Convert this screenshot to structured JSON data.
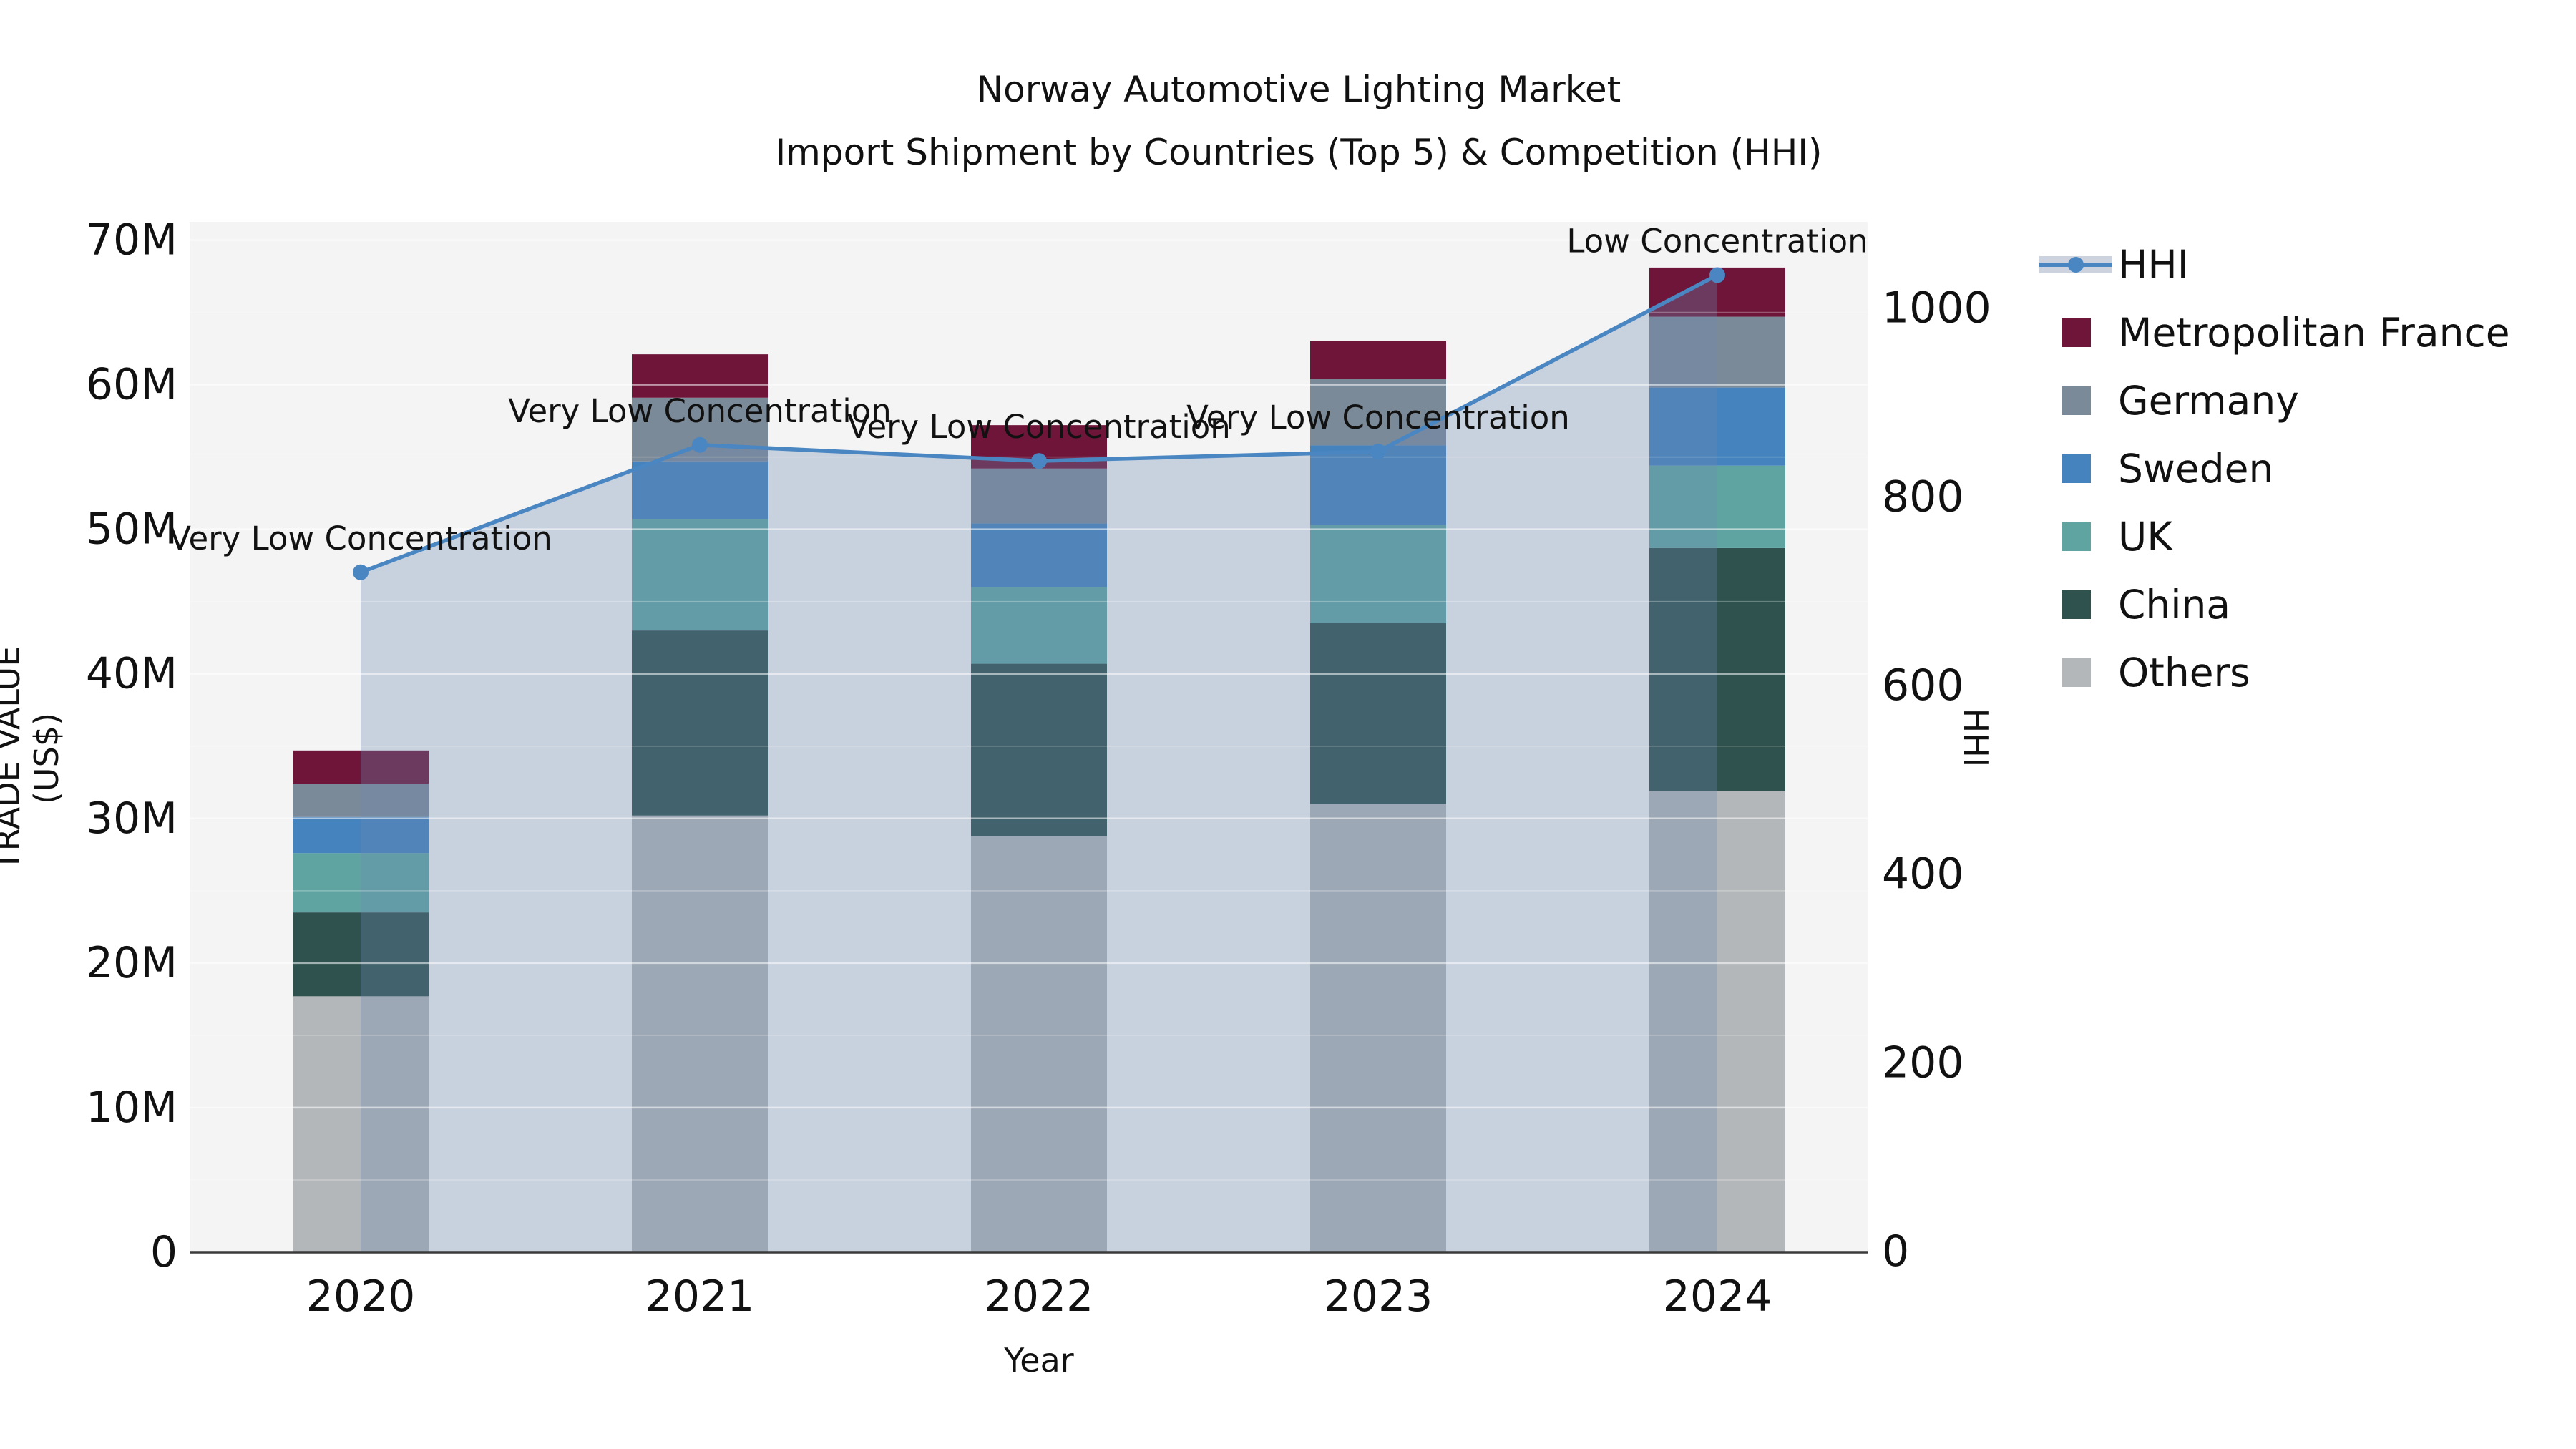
{
  "title": {
    "line1": "Norway Automotive Lighting Market",
    "line2": "Import Shipment by Countries (Top 5) & Competition (HHI)"
  },
  "axes": {
    "x_title": "Year",
    "y_left_title": "TRADE VALUE (US$)",
    "y_right_title": "HHI",
    "y_left_tick_values": [
      0,
      10,
      20,
      30,
      40,
      50,
      60,
      70
    ],
    "y_left_tick_labels": [
      "0",
      "10M",
      "20M",
      "30M",
      "40M",
      "50M",
      "60M",
      "70M"
    ],
    "y_right_tick_values": [
      0,
      200,
      400,
      600,
      800,
      1000
    ],
    "y_right_tick_labels": [
      "0",
      "200",
      "400",
      "600",
      "800",
      "1000"
    ]
  },
  "chart_data": {
    "type": "combo-stacked-bar-line",
    "categories": [
      "2020",
      "2021",
      "2022",
      "2023",
      "2024"
    ],
    "values_unit": "million US$",
    "ylim_left": [
      0,
      70
    ],
    "ylim_right": [
      0,
      1073
    ],
    "bar_series": [
      {
        "name": "Others",
        "color": "#b4b7b9",
        "values": [
          17.7,
          30.2,
          28.8,
          31.0,
          31.9
        ]
      },
      {
        "name": "China",
        "color": "#2f524e",
        "values": [
          5.8,
          12.8,
          11.9,
          12.5,
          16.8
        ]
      },
      {
        "name": "UK",
        "color": "#5fa4a1",
        "values": [
          4.1,
          7.7,
          5.3,
          6.8,
          5.7
        ]
      },
      {
        "name": "Sweden",
        "color": "#4583be",
        "values": [
          2.5,
          4.0,
          4.4,
          5.5,
          5.4
        ]
      },
      {
        "name": "Germany",
        "color": "#7b8a99",
        "values": [
          2.3,
          4.4,
          3.8,
          4.6,
          4.9
        ]
      },
      {
        "name": "Metropolitan France",
        "color": "#6e1539",
        "values": [
          2.3,
          3.0,
          3.0,
          2.6,
          3.4
        ]
      }
    ],
    "bar_totals": [
      34.7,
      62.1,
      57.2,
      63.0,
      68.1
    ],
    "line_series": {
      "name": "HHI",
      "color": "#4a86c2",
      "area_fill": "rgba(109,138,176,0.32)",
      "values": [
        720,
        855,
        838,
        848,
        1035
      ]
    },
    "annotations": [
      {
        "category": "2020",
        "text": "Very Low Concentration"
      },
      {
        "category": "2021",
        "text": "Very Low Concentration"
      },
      {
        "category": "2022",
        "text": "Very Low Concentration"
      },
      {
        "category": "2023",
        "text": "Very Low Concentration"
      },
      {
        "category": "2024",
        "text": "Low Concentration"
      }
    ],
    "plot_background": "#f4f4f4",
    "grid": true,
    "legend_position": "right"
  },
  "legend": {
    "items": [
      {
        "label": "HHI",
        "type": "line",
        "color": "#4a86c2"
      },
      {
        "label": "Metropolitan France",
        "type": "patch",
        "color": "#6e1539"
      },
      {
        "label": "Germany",
        "type": "patch",
        "color": "#7b8a99"
      },
      {
        "label": "Sweden",
        "type": "patch",
        "color": "#4583be"
      },
      {
        "label": "UK",
        "type": "patch",
        "color": "#5fa4a1"
      },
      {
        "label": "China",
        "type": "patch",
        "color": "#2f524e"
      },
      {
        "label": "Others",
        "type": "patch",
        "color": "#b4b7b9"
      }
    ]
  }
}
